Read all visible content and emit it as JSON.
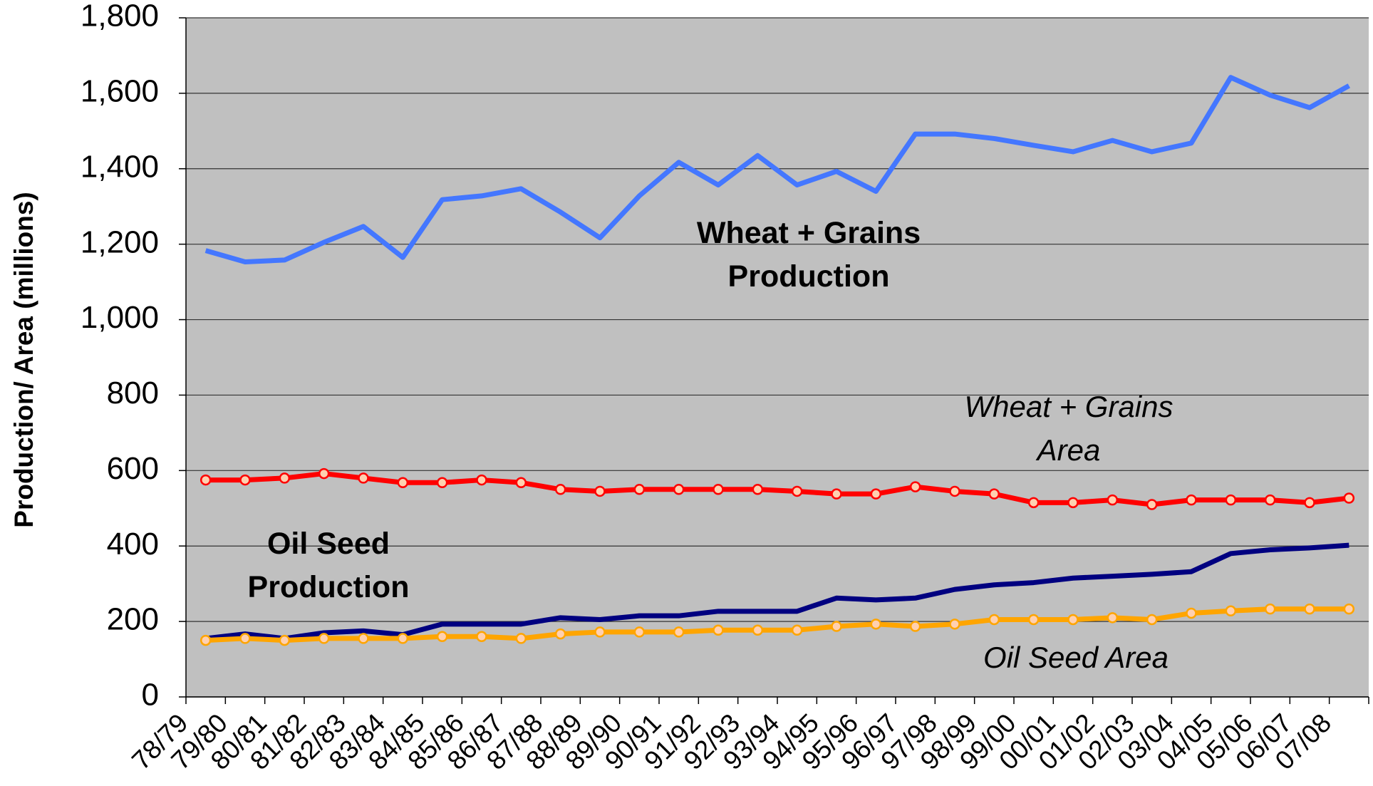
{
  "chart_data": {
    "type": "line",
    "y_label": "Production/ Area (millions)",
    "categories": [
      "78/79",
      "79/80",
      "80/81",
      "81/82",
      "82/83",
      "83/84",
      "84/85",
      "85/86",
      "86/87",
      "87/88",
      "88/89",
      "89/90",
      "90/91",
      "91/92",
      "92/93",
      "93/94",
      "94/95",
      "95/96",
      "96/97",
      "97/98",
      "98/99",
      "99/00",
      "00/01",
      "01/02",
      "02/03",
      "03/04",
      "04/05",
      "05/06",
      "06/07",
      "07/08"
    ],
    "series": [
      {
        "color": "#4477ff",
        "marker": false,
        "values": [
          1183,
          1153,
          1158,
          1205,
          1247,
          1165,
          1318,
          1328,
          1347,
          1285,
          1217,
          1328,
          1417,
          1357,
          1435,
          1357,
          1393,
          1340,
          1492,
          1492,
          1480,
          1462,
          1445,
          1475,
          1445,
          1468,
          1642,
          1595,
          1562,
          1620
        ]
      },
      {
        "color": "#ff0000",
        "marker": true,
        "values": [
          575,
          575,
          580,
          592,
          580,
          568,
          568,
          575,
          568,
          550,
          545,
          550,
          550,
          550,
          550,
          545,
          538,
          538,
          557,
          545,
          538,
          515,
          515,
          522,
          510,
          522,
          522,
          522,
          515,
          527
        ]
      },
      {
        "color": "#000080",
        "marker": false,
        "values": [
          155,
          167,
          155,
          170,
          175,
          165,
          193,
          193,
          193,
          210,
          205,
          215,
          215,
          227,
          227,
          227,
          262,
          257,
          262,
          285,
          297,
          303,
          315,
          320,
          325,
          332,
          380,
          390,
          395,
          402
        ]
      },
      {
        "color": "#ffa500",
        "marker": true,
        "values": [
          150,
          155,
          150,
          155,
          155,
          155,
          160,
          160,
          155,
          167,
          172,
          172,
          172,
          177,
          177,
          177,
          187,
          193,
          187,
          193,
          205,
          205,
          205,
          210,
          205,
          222,
          228,
          233,
          233,
          233
        ]
      }
    ],
    "annotations": [
      {
        "lines": [
          "Wheat + Grains",
          "Production"
        ],
        "style": "bold"
      },
      {
        "lines": [
          "Wheat + Grains",
          "Area"
        ],
        "style": "italic"
      },
      {
        "lines": [
          "Oil Seed",
          "Production"
        ],
        "style": "bold"
      },
      {
        "lines": [
          "Oil Seed Area"
        ],
        "style": "italic"
      }
    ],
    "ylim": [
      0,
      1800
    ],
    "yticks": [
      0,
      200,
      400,
      600,
      800,
      {
        "value": 1000,
        "label": "1,000"
      },
      {
        "value": 1200,
        "label": "1,200"
      },
      {
        "value": 1400,
        "label": "1,400"
      },
      {
        "value": 1600,
        "label": "1,600"
      },
      {
        "value": 1800,
        "label": "1,800"
      }
    ],
    "grid": true,
    "plot_background": "#c0c0c0"
  }
}
